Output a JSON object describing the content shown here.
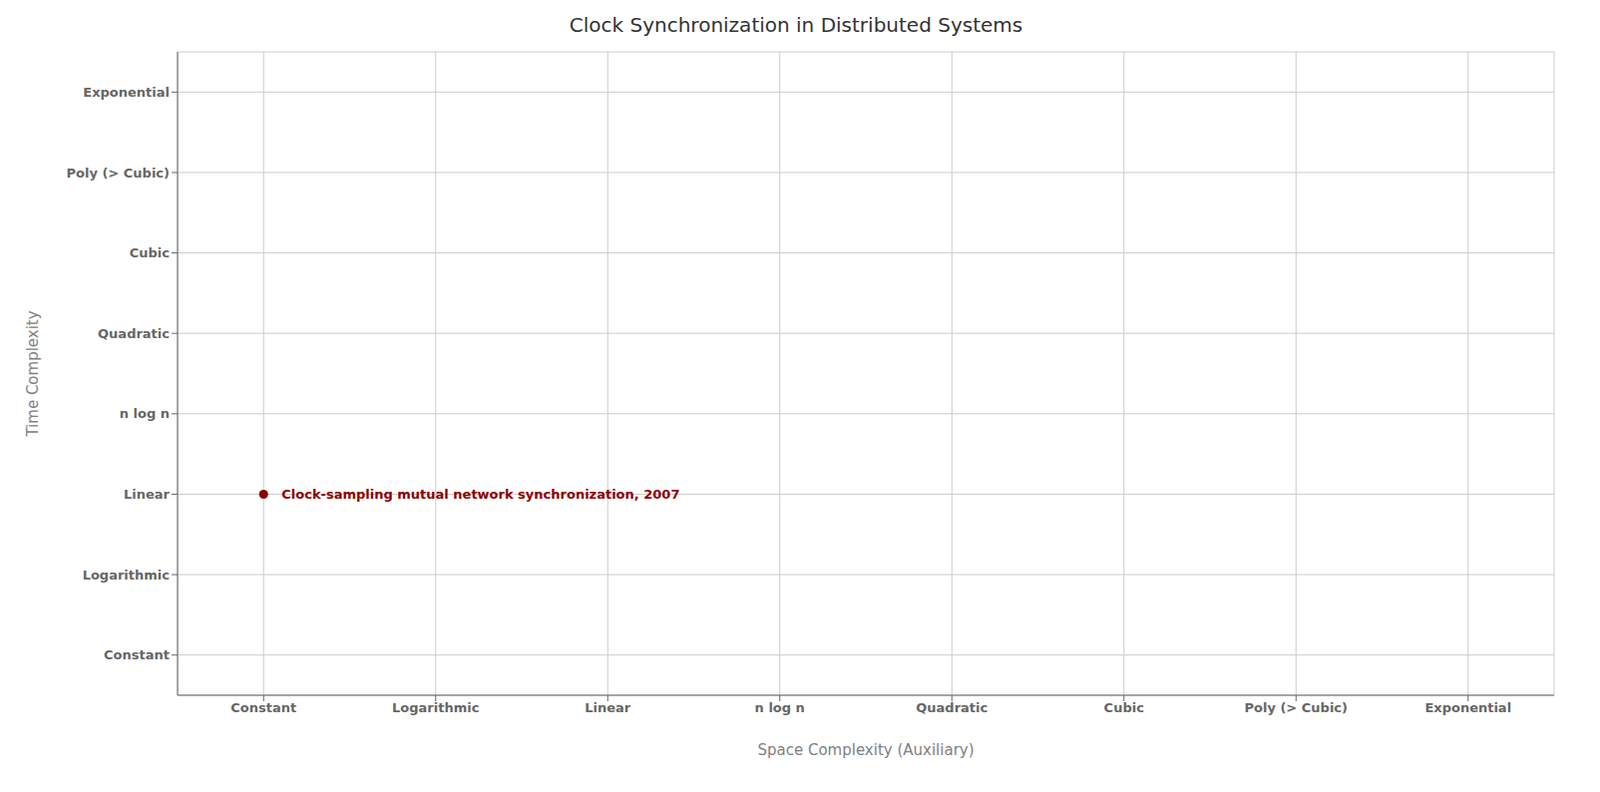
{
  "chart_data": {
    "type": "scatter",
    "title": "Clock Synchronization in Distributed Systems",
    "x_label": "Space Complexity (Auxiliary)",
    "y_label": "Time Complexity",
    "xlim": [
      -0.5,
      7.5
    ],
    "ylim": [
      -0.5,
      7.5
    ],
    "xticks": [
      {
        "value": 0,
        "label": "Constant"
      },
      {
        "value": 1,
        "label": "Logarithmic"
      },
      {
        "value": 2,
        "label": "Linear"
      },
      {
        "value": 3,
        "label": "n log n"
      },
      {
        "value": 4,
        "label": "Quadratic"
      },
      {
        "value": 5,
        "label": "Cubic"
      },
      {
        "value": 6,
        "label": "Poly (> Cubic)"
      },
      {
        "value": 7,
        "label": "Exponential"
      }
    ],
    "yticks": [
      {
        "value": 0,
        "label": "Constant"
      },
      {
        "value": 1,
        "label": "Logarithmic"
      },
      {
        "value": 2,
        "label": "Linear"
      },
      {
        "value": 3,
        "label": "n log n"
      },
      {
        "value": 4,
        "label": "Quadratic"
      },
      {
        "value": 5,
        "label": "Cubic"
      },
      {
        "value": 6,
        "label": "Poly (> Cubic)"
      },
      {
        "value": 7,
        "label": "Exponential"
      }
    ],
    "x": [
      0
    ],
    "values": [
      2
    ],
    "color": "#8B0000",
    "annotations": [
      {
        "text": "Clock-sampling mutual network synchronization, 2007",
        "x": 0,
        "y": 2,
        "color": "#8B0000"
      }
    ],
    "grid": true
  }
}
